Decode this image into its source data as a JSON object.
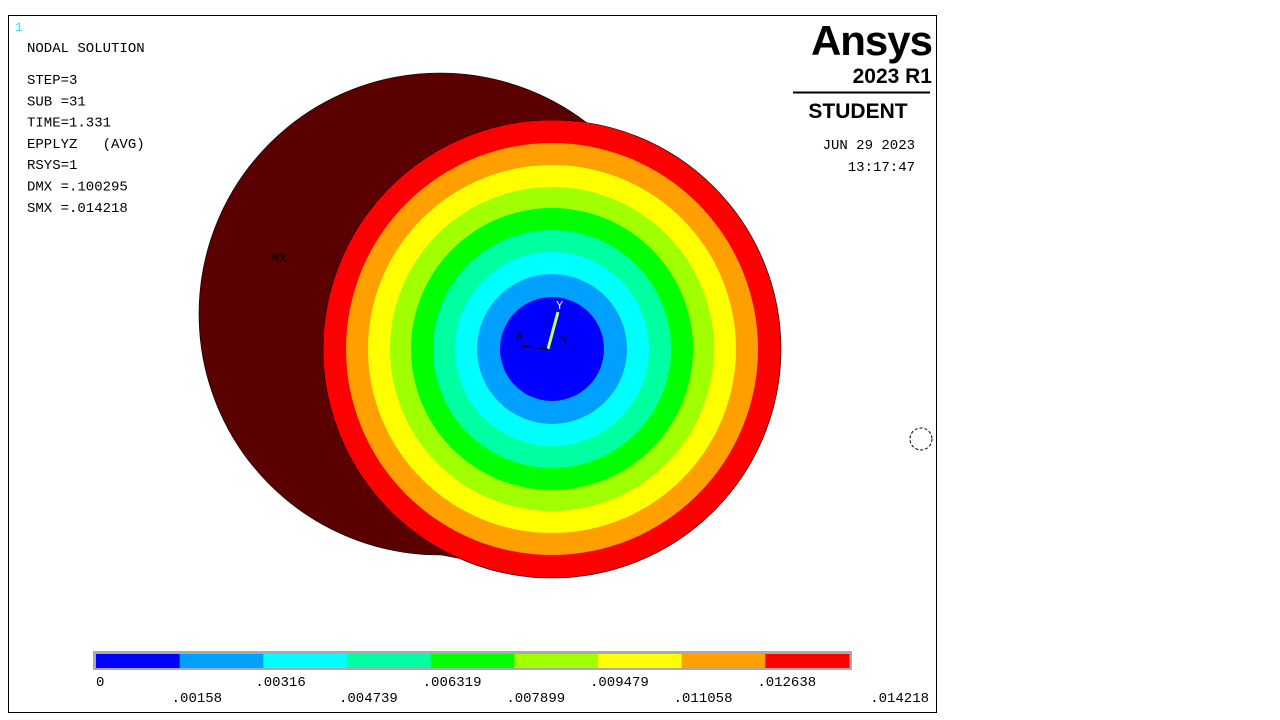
{
  "plot_number": "1",
  "info": {
    "title": "NODAL SOLUTION",
    "lines": [
      "STEP=3",
      "SUB =31",
      "TIME=1.331",
      "EPPLYZ   (AVG)",
      "RSYS=1",
      "DMX =.100295",
      "SMX =.014218"
    ]
  },
  "brand": {
    "name": "Ansys",
    "version": "2023 R1",
    "edition": "STUDENT"
  },
  "date": "JUN 29 2023",
  "time": "13:17:47",
  "markers": {
    "max": "MX",
    "axis_x": "X",
    "axis_y": "Y",
    "axis_n": "N"
  },
  "legend": {
    "colors": [
      "#0000ff",
      "#00a0ff",
      "#00ffff",
      "#00ffa0",
      "#00ff00",
      "#a0ff00",
      "#ffff00",
      "#ffa000",
      "#ff0000"
    ],
    "labels": [
      "0",
      ".00158",
      ".00316",
      ".004739",
      ".006319",
      ".007899",
      ".009479",
      ".011058",
      ".012638",
      ".014218"
    ]
  }
}
